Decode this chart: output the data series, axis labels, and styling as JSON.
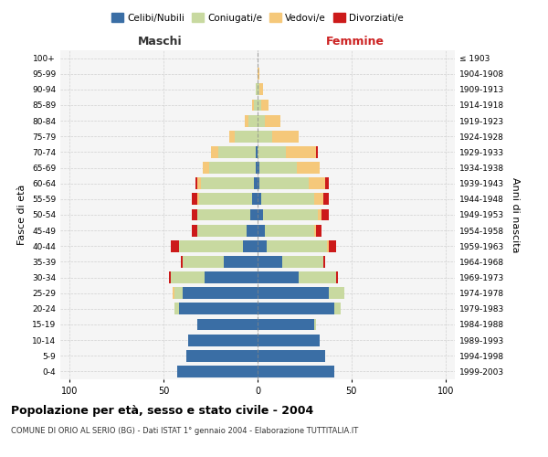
{
  "age_groups": [
    "0-4",
    "5-9",
    "10-14",
    "15-19",
    "20-24",
    "25-29",
    "30-34",
    "35-39",
    "40-44",
    "45-49",
    "50-54",
    "55-59",
    "60-64",
    "65-69",
    "70-74",
    "75-79",
    "80-84",
    "85-89",
    "90-94",
    "95-99",
    "100+"
  ],
  "birth_years": [
    "1999-2003",
    "1994-1998",
    "1989-1993",
    "1984-1988",
    "1979-1983",
    "1974-1978",
    "1969-1973",
    "1964-1968",
    "1959-1963",
    "1954-1958",
    "1949-1953",
    "1944-1948",
    "1939-1943",
    "1934-1938",
    "1929-1933",
    "1924-1928",
    "1919-1923",
    "1914-1918",
    "1909-1913",
    "1904-1908",
    "≤ 1903"
  ],
  "maschi": {
    "celibi": [
      43,
      38,
      37,
      32,
      42,
      40,
      28,
      18,
      8,
      6,
      4,
      3,
      2,
      1,
      1,
      0,
      0,
      0,
      0,
      0,
      0
    ],
    "coniugati": [
      0,
      0,
      0,
      0,
      2,
      4,
      18,
      22,
      34,
      26,
      28,
      28,
      28,
      25,
      20,
      12,
      5,
      2,
      1,
      0,
      0
    ],
    "vedovi": [
      0,
      0,
      0,
      0,
      0,
      1,
      0,
      0,
      0,
      0,
      0,
      1,
      2,
      3,
      4,
      3,
      2,
      1,
      0,
      0,
      0
    ],
    "divorziati": [
      0,
      0,
      0,
      0,
      0,
      0,
      1,
      1,
      4,
      3,
      3,
      3,
      1,
      0,
      0,
      0,
      0,
      0,
      0,
      0,
      0
    ]
  },
  "femmine": {
    "nubili": [
      41,
      36,
      33,
      30,
      41,
      38,
      22,
      13,
      5,
      4,
      3,
      2,
      1,
      1,
      0,
      0,
      0,
      0,
      0,
      0,
      0
    ],
    "coniugate": [
      0,
      0,
      0,
      1,
      3,
      8,
      20,
      22,
      32,
      26,
      29,
      28,
      26,
      20,
      15,
      8,
      4,
      2,
      1,
      0,
      0
    ],
    "vedove": [
      0,
      0,
      0,
      0,
      0,
      0,
      0,
      0,
      1,
      1,
      2,
      5,
      9,
      12,
      16,
      14,
      8,
      4,
      2,
      1,
      0
    ],
    "divorziate": [
      0,
      0,
      0,
      0,
      0,
      0,
      1,
      1,
      4,
      3,
      4,
      3,
      2,
      0,
      1,
      0,
      0,
      0,
      0,
      0,
      0
    ]
  },
  "colors": {
    "celibi": "#3a6ea5",
    "coniugati": "#c8d9a0",
    "vedovi": "#f5c87a",
    "divorziati": "#cc1a1a"
  },
  "xlim": 105,
  "title": "Popolazione per età, sesso e stato civile - 2004",
  "subtitle": "COMUNE DI ORIO AL SERIO (BG) - Dati ISTAT 1° gennaio 2004 - Elaborazione TUTTITALIA.IT",
  "xlabel_left": "Maschi",
  "xlabel_right": "Femmine",
  "ylabel_left": "Fasce di età",
  "ylabel_right": "Anni di nascita",
  "background_color": "#f5f5f5",
  "grid_color": "#cccccc"
}
